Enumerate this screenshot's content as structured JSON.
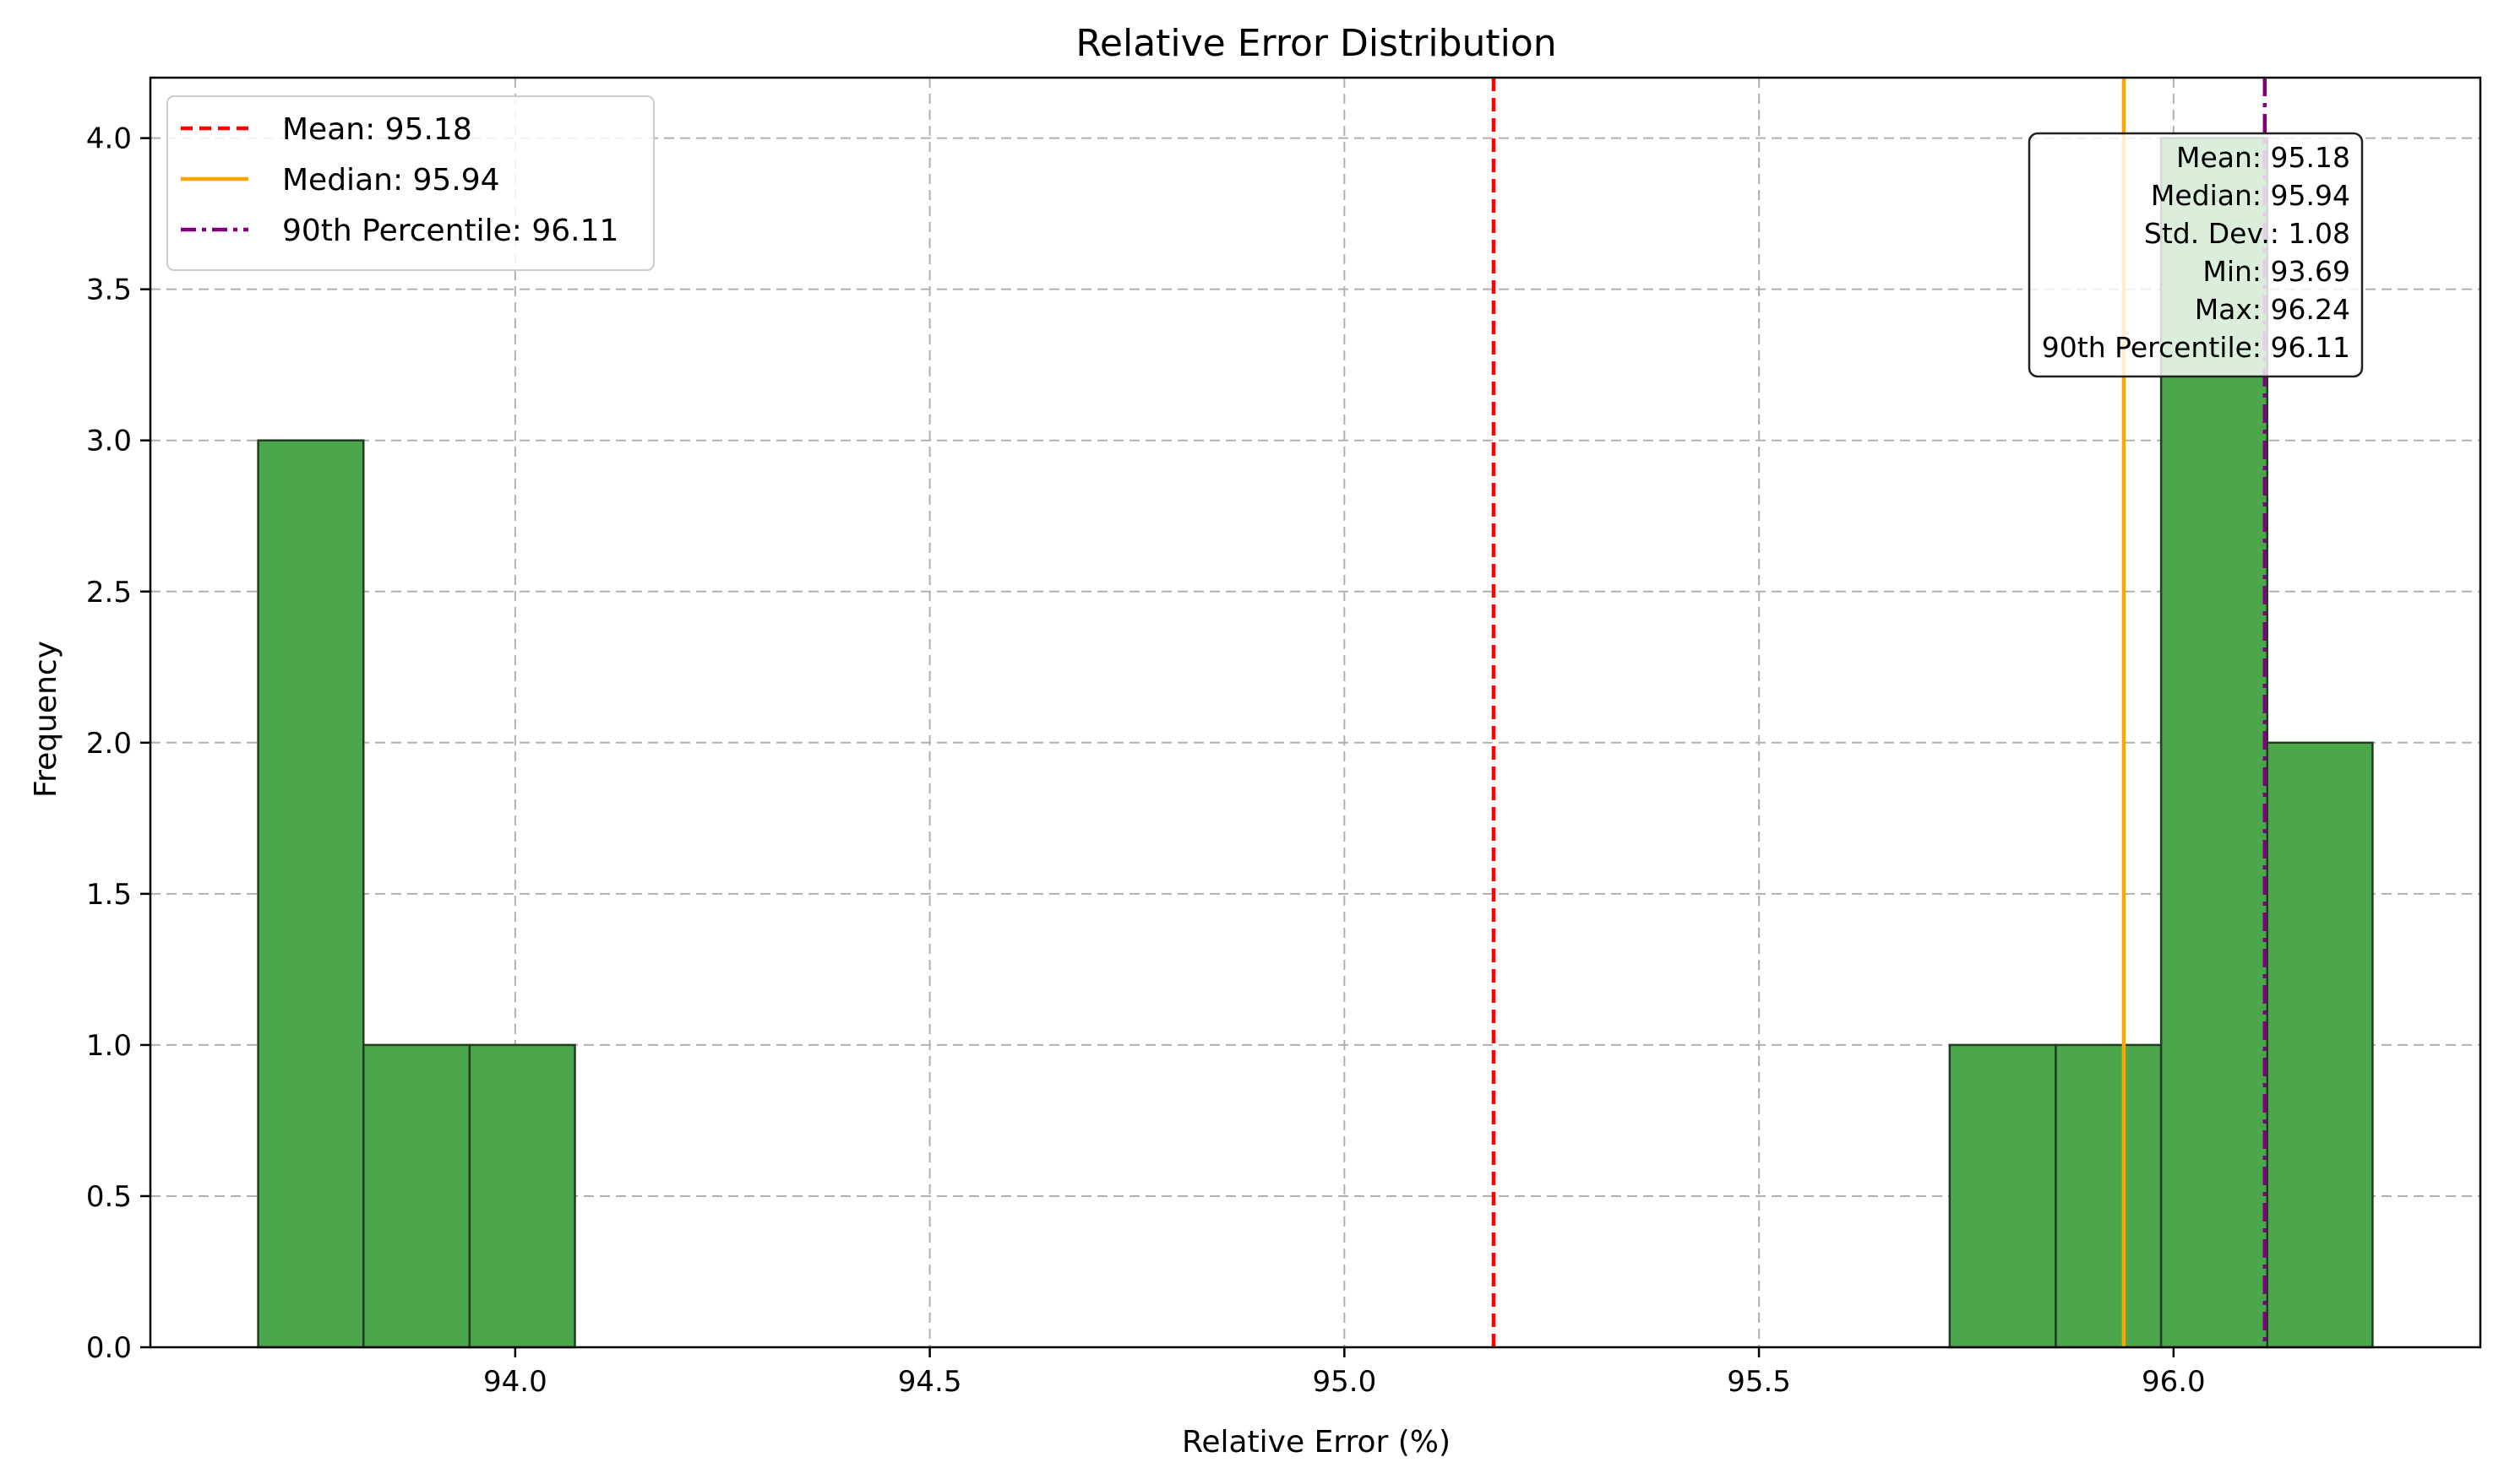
{
  "chart_data": {
    "type": "bar",
    "title": "Relative Error Distribution",
    "xlabel": "Relative Error (%)",
    "ylabel": "Frequency",
    "xlim": [
      93.56,
      96.37
    ],
    "ylim": [
      0,
      4.2
    ],
    "xticks": [
      94.0,
      94.5,
      95.0,
      95.5,
      96.0
    ],
    "xtick_labels": [
      "94.0",
      "94.5",
      "95.0",
      "95.5",
      "96.0"
    ],
    "yticks": [
      0.0,
      0.5,
      1.0,
      1.5,
      2.0,
      2.5,
      3.0,
      3.5,
      4.0
    ],
    "ytick_labels": [
      "0.0",
      "0.5",
      "1.0",
      "1.5",
      "2.0",
      "2.5",
      "3.0",
      "3.5",
      "4.0"
    ],
    "grid": true,
    "bar_color": "#4ca64c",
    "bar_edge_color": "#1f3d1f",
    "bins": [
      {
        "start": 93.69,
        "end": 93.817,
        "count": 3
      },
      {
        "start": 93.817,
        "end": 93.945,
        "count": 1
      },
      {
        "start": 93.945,
        "end": 94.072,
        "count": 1
      },
      {
        "start": 95.73,
        "end": 95.858,
        "count": 1
      },
      {
        "start": 95.858,
        "end": 95.985,
        "count": 1
      },
      {
        "start": 95.985,
        "end": 96.113,
        "count": 4
      },
      {
        "start": 96.113,
        "end": 96.24,
        "count": 2
      }
    ],
    "reference_lines": [
      {
        "label": "Mean: 95.18",
        "value": 95.18,
        "color": "#ff0000",
        "style": "dashed"
      },
      {
        "label": "Median: 95.94",
        "value": 95.94,
        "color": "#ffa500",
        "style": "solid"
      },
      {
        "label": "90th Percentile: 96.11",
        "value": 96.11,
        "color": "#800080",
        "style": "dashdot"
      }
    ],
    "legend_position": "top-left",
    "stats_box": {
      "position": "top-right",
      "lines": [
        "Mean: 95.18",
        "Median: 95.94",
        "Std. Dev.: 1.08",
        "Min: 93.69",
        "Max: 96.24",
        "90th Percentile: 96.11"
      ]
    }
  }
}
